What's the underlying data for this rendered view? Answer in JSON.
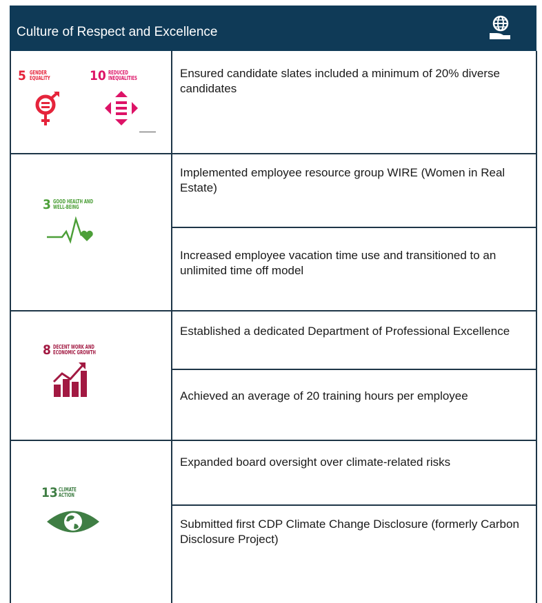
{
  "header": {
    "title": "Culture of Respect and Excellence"
  },
  "sections": [
    {
      "goals": [
        {
          "number": "5",
          "label": "GENDER EQUALITY"
        },
        {
          "number": "10",
          "label": "REDUCED INEQUALITIES"
        }
      ],
      "items": [
        "Ensured candidate slates included a minimum of 20% diverse candidates"
      ]
    },
    {
      "goals": [
        {
          "number": "3",
          "label": "GOOD HEALTH AND WELL-BEING"
        }
      ],
      "items": [
        "Implemented employee resource group WIRE (Women in Real Estate)",
        "Increased employee vacation time use and transitioned to an unlimited time off model"
      ]
    },
    {
      "goals": [
        {
          "number": "8",
          "label": "DECENT WORK AND ECONOMIC GROWTH"
        }
      ],
      "items": [
        "Established a dedicated Department of Professional Excellence",
        "Achieved an average of 20 training hours per employee"
      ]
    },
    {
      "goals": [
        {
          "number": "13",
          "label": "CLIMATE ACTION"
        }
      ],
      "items": [
        "Expanded board oversight over climate-related risks",
        "Submitted first CDP Climate Change Disclosure (formerly Carbon Disclosure Project)"
      ]
    }
  ]
}
